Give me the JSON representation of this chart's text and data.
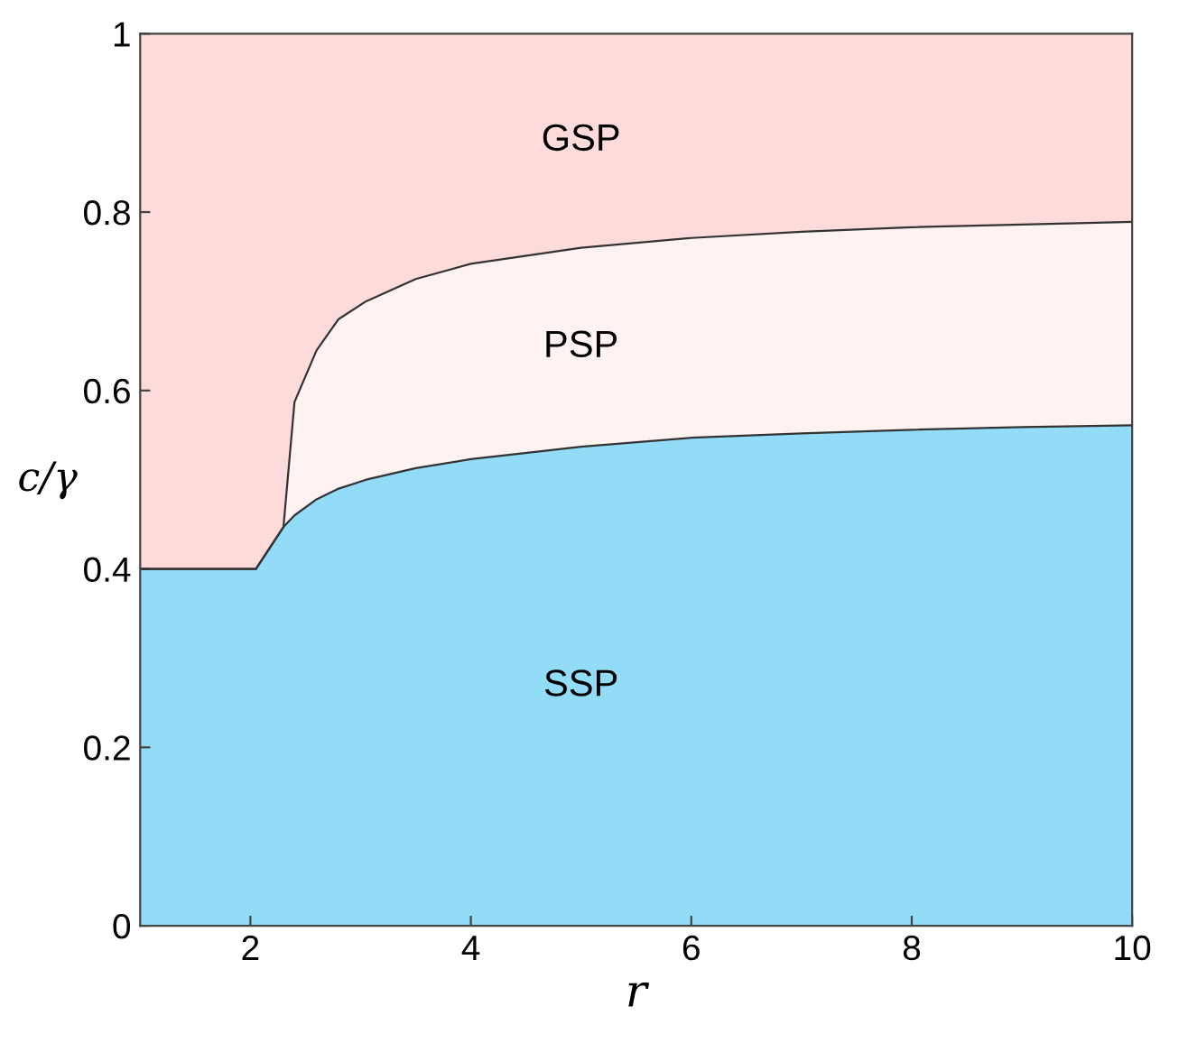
{
  "chart_data": {
    "type": "area",
    "stacked": true,
    "xlabel": "r",
    "ylabel": "c/γ",
    "x": [
      1,
      2.05,
      2.3,
      2.4,
      2.6,
      2.8,
      3.05,
      3.5,
      4,
      5,
      6,
      7,
      8,
      9,
      10
    ],
    "series": [
      {
        "name": "SSP",
        "color": "#93dcf8",
        "values": [
          0.4,
          0.4,
          0.447,
          0.46,
          0.478,
          0.49,
          0.5,
          0.513,
          0.523,
          0.537,
          0.547,
          0.552,
          0.556,
          0.559,
          0.561
        ]
      },
      {
        "name": "PSP",
        "color": "#fff3f2",
        "values": [
          0,
          0,
          0,
          0.127,
          0.167,
          0.19,
          0.2,
          0.212,
          0.219,
          0.223,
          0.224,
          0.226,
          0.227,
          0.227,
          0.228
        ]
      },
      {
        "name": "GSP",
        "color": "#fddbdb",
        "values": [
          0.6,
          0.6,
          0.553,
          0.413,
          0.355,
          0.32,
          0.3,
          0.275,
          0.258,
          0.24,
          0.229,
          0.222,
          0.217,
          0.214,
          0.211
        ]
      }
    ],
    "xlim": [
      1,
      10
    ],
    "ylim": [
      0,
      1
    ],
    "xticks": [
      2,
      4,
      6,
      8,
      10
    ],
    "yticks": [
      0,
      0.2,
      0.4,
      0.6,
      0.8,
      1
    ],
    "grid": false,
    "legend": false
  }
}
